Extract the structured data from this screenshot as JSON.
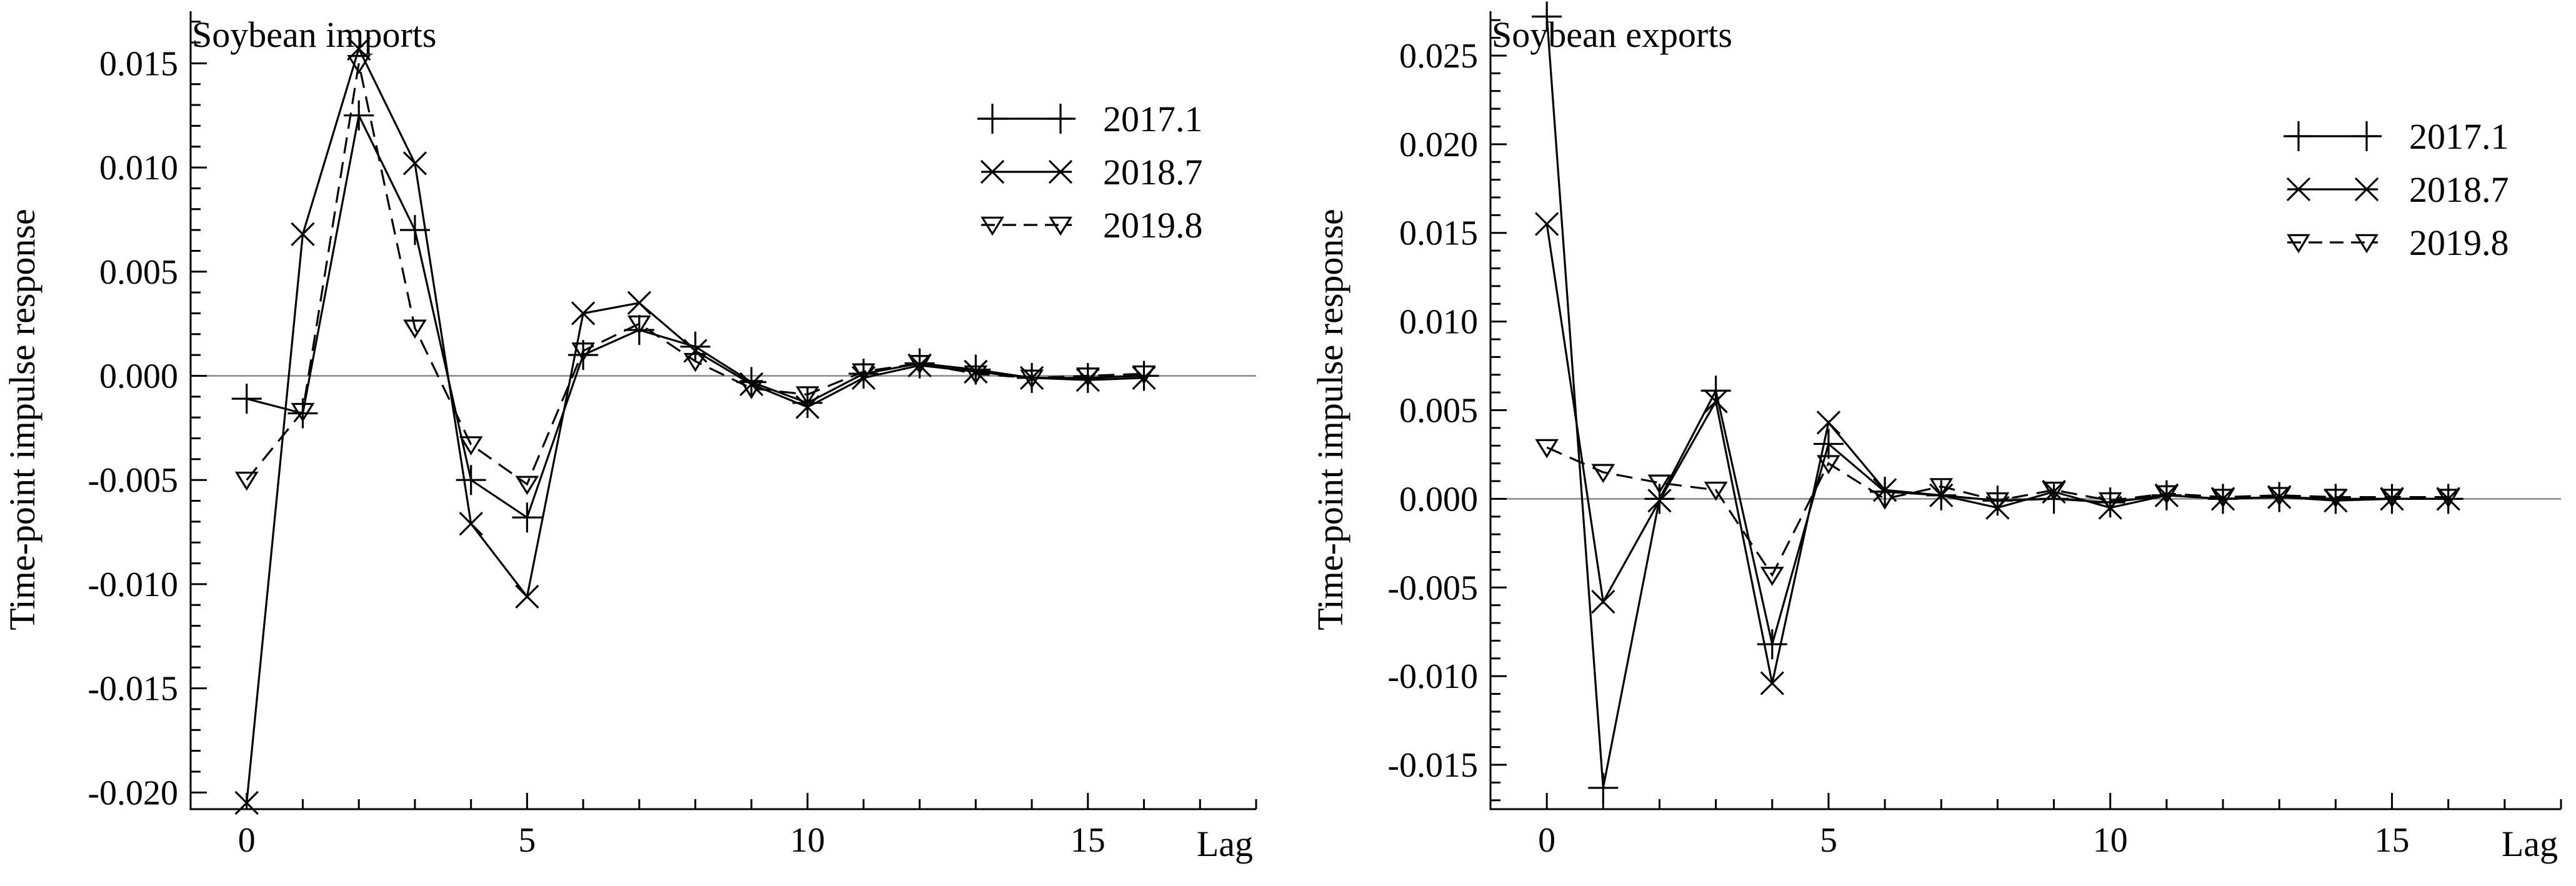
{
  "chart_data": [
    {
      "type": "line",
      "title": "Soybean imports",
      "xlabel": "Lag",
      "ylabel": "Time-point impulse response",
      "xlim": [
        -1,
        18
      ],
      "ylim": [
        -0.0208,
        0.0175
      ],
      "x_ticks": [
        "0",
        "5",
        "10",
        "15"
      ],
      "y_ticks": [
        "0.015",
        "0.010",
        "0.005",
        "0.000",
        "-0.005",
        "-0.010",
        "-0.015",
        "-0.020"
      ],
      "legend_position": "top-right",
      "x": [
        0,
        1,
        2,
        3,
        4,
        5,
        6,
        7,
        8,
        9,
        10,
        11,
        12,
        13,
        14,
        15,
        16
      ],
      "series": [
        {
          "name": "2017.1",
          "marker": "plus",
          "dash": "solid",
          "values": [
            -0.0011,
            -0.0018,
            0.0125,
            0.007,
            -0.005,
            -0.0068,
            0.001,
            0.0022,
            0.0014,
            -0.0003,
            -0.0013,
            0.0001,
            0.0006,
            0.0003,
            -0.0001,
            -0.0001,
            0.0
          ]
        },
        {
          "name": "2018.7",
          "marker": "x",
          "dash": "solid",
          "values": [
            -0.0205,
            0.0068,
            0.0157,
            0.0102,
            -0.0071,
            -0.0106,
            0.003,
            0.0035,
            0.0012,
            -0.0004,
            -0.0015,
            -0.0001,
            0.0005,
            0.0002,
            -0.0001,
            -0.0002,
            -0.0001
          ]
        },
        {
          "name": "2019.8",
          "marker": "triangle-down",
          "dash": "dashed",
          "values": [
            -0.005,
            -0.0017,
            0.015,
            0.0023,
            -0.0033,
            -0.0052,
            0.0012,
            0.0025,
            0.0007,
            -0.0006,
            -0.0009,
            0.0002,
            0.0006,
            0.0001,
            -0.0001,
            0.0,
            0.0001
          ]
        }
      ]
    },
    {
      "type": "line",
      "title": "Soybean exports",
      "xlabel": "Lag",
      "ylabel": "Time-point impulse response",
      "xlim": [
        -1,
        18
      ],
      "ylim": [
        -0.0175,
        0.0275
      ],
      "x_ticks": [
        "0",
        "5",
        "10",
        "15"
      ],
      "y_ticks": [
        "0.025",
        "0.020",
        "0.015",
        "0.010",
        "0.005",
        "0.000",
        "-0.005",
        "-0.010",
        "-0.015"
      ],
      "legend_position": "top-right",
      "x": [
        0,
        1,
        2,
        3,
        4,
        5,
        6,
        7,
        8,
        9,
        10,
        11,
        12,
        13,
        14,
        15,
        16
      ],
      "series": [
        {
          "name": "2017.1",
          "marker": "plus",
          "dash": "solid",
          "values": [
            0.0272,
            -0.0163,
            0.0,
            0.0061,
            -0.0082,
            0.0031,
            0.0004,
            0.0002,
            -0.0001,
            0.0,
            -0.0002,
            0.0002,
            0.0,
            0.0001,
            0.0,
            0.0,
            0.0
          ]
        },
        {
          "name": "2018.7",
          "marker": "x",
          "dash": "solid",
          "values": [
            0.0155,
            -0.0058,
            -0.0001,
            0.0055,
            -0.0104,
            0.0043,
            0.0005,
            0.0002,
            -0.0005,
            0.0004,
            -0.0005,
            0.0002,
            0.0,
            0.0001,
            -0.0001,
            0.0,
            0.0
          ]
        },
        {
          "name": "2019.8",
          "marker": "triangle-down",
          "dash": "dashed",
          "values": [
            0.0029,
            0.0015,
            0.0009,
            0.0005,
            -0.0043,
            0.002,
            0.0,
            0.0007,
            -0.0001,
            0.0005,
            -0.0001,
            0.0003,
            0.0001,
            0.0002,
            0.0001,
            0.0001,
            0.0001
          ]
        }
      ]
    }
  ]
}
